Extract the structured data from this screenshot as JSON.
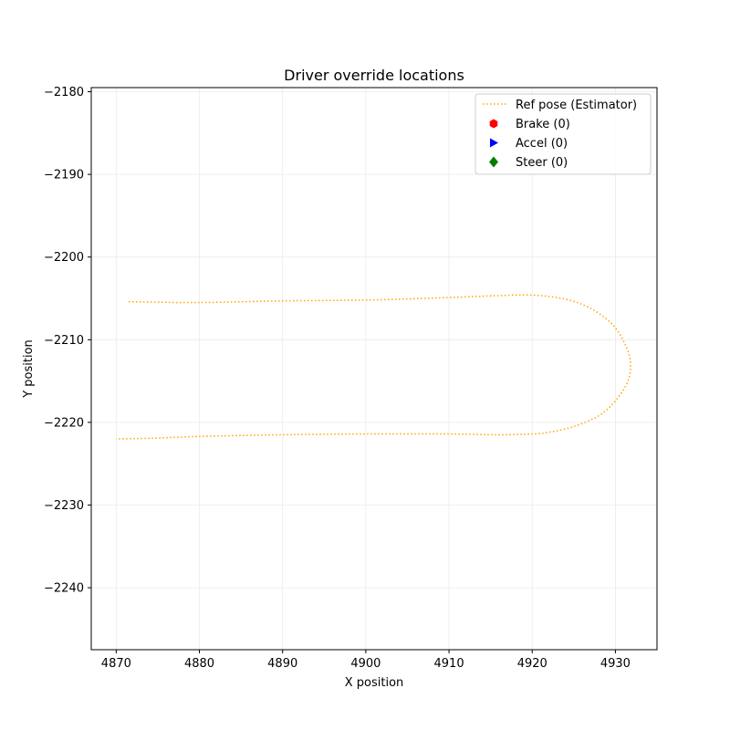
{
  "chart_data": {
    "type": "line",
    "title": "Driver override locations",
    "xlabel": "X position",
    "ylabel": "Y position",
    "xlim": [
      4867,
      4935
    ],
    "ylim": [
      -2247.5,
      -2179.5
    ],
    "xticks": [
      4870,
      4880,
      4890,
      4900,
      4910,
      4920,
      4930
    ],
    "yticks": [
      -2180,
      -2190,
      -2200,
      -2210,
      -2220,
      -2230,
      -2240
    ],
    "xtick_labels": [
      "4870",
      "4880",
      "4890",
      "4900",
      "4910",
      "4920",
      "4930"
    ],
    "ytick_labels": [
      "−2180",
      "−2190",
      "−2200",
      "−2210",
      "−2220",
      "−2230",
      "−2240"
    ],
    "grid": true,
    "legend_position": "top-right",
    "series": [
      {
        "name": "Ref pose (Estimator)",
        "color": "#FFA500",
        "style": "dotted",
        "x": [
          4871.5,
          4880,
          4890,
          4900,
          4910,
          4915,
          4920,
          4924,
          4927,
          4929.5,
          4931,
          4931.8,
          4931.5,
          4930,
          4928,
          4925,
          4922,
          4920,
          4916,
          4910,
          4900,
          4890,
          4880,
          4875,
          4870
        ],
        "y": [
          -2205.4,
          -2205.5,
          -2205.3,
          -2205.2,
          -2204.9,
          -2204.7,
          -2204.6,
          -2205.1,
          -2206.2,
          -2208.0,
          -2210.2,
          -2212.6,
          -2215.0,
          -2217.4,
          -2219.2,
          -2220.5,
          -2221.2,
          -2221.4,
          -2221.5,
          -2221.4,
          -2221.4,
          -2221.5,
          -2221.7,
          -2221.9,
          -2222.0
        ]
      },
      {
        "name": "Brake (0)",
        "color": "#FF0000",
        "marker": "hexagon",
        "x": [],
        "y": []
      },
      {
        "name": "Accel (0)",
        "color": "#0000FF",
        "marker": "triangle-right",
        "x": [],
        "y": []
      },
      {
        "name": "Steer (0)",
        "color": "#008000",
        "marker": "diamond",
        "x": [],
        "y": []
      }
    ]
  }
}
